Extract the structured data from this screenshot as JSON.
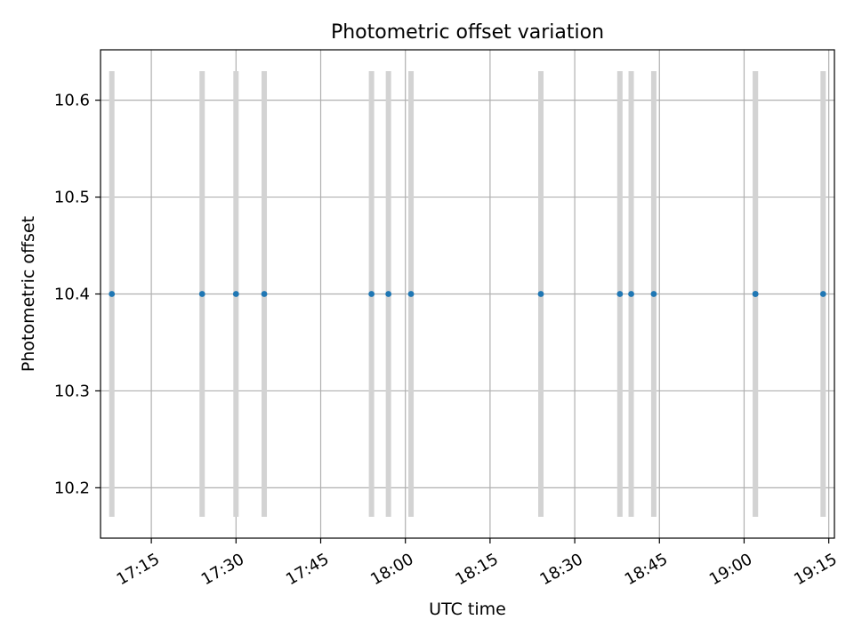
{
  "chart_data": {
    "type": "scatter",
    "title": "Photometric offset variation",
    "xlabel": "UTC time",
    "ylabel": "Photometric offset",
    "x_is_time": true,
    "xlim": [
      "17:06",
      "19:16"
    ],
    "ylim": [
      10.148,
      10.652
    ],
    "x_ticks": [
      "17:15",
      "17:30",
      "17:45",
      "18:00",
      "18:15",
      "18:30",
      "18:45",
      "19:00",
      "19:15"
    ],
    "y_ticks": [
      "10.2",
      "10.3",
      "10.4",
      "10.5",
      "10.6"
    ],
    "grid": true,
    "points": [
      {
        "x": "17:08",
        "y": 10.4,
        "err": 0.23
      },
      {
        "x": "17:24",
        "y": 10.4,
        "err": 0.23
      },
      {
        "x": "17:30",
        "y": 10.4,
        "err": 0.23
      },
      {
        "x": "17:35",
        "y": 10.4,
        "err": 0.23
      },
      {
        "x": "17:54",
        "y": 10.4,
        "err": 0.23
      },
      {
        "x": "17:57",
        "y": 10.4,
        "err": 0.23
      },
      {
        "x": "18:01",
        "y": 10.4,
        "err": 0.23
      },
      {
        "x": "18:24",
        "y": 10.4,
        "err": 0.23
      },
      {
        "x": "18:38",
        "y": 10.4,
        "err": 0.23
      },
      {
        "x": "18:40",
        "y": 10.4,
        "err": 0.23
      },
      {
        "x": "18:44",
        "y": 10.4,
        "err": 0.23
      },
      {
        "x": "19:02",
        "y": 10.4,
        "err": 0.23
      },
      {
        "x": "19:02",
        "y": 10.4,
        "err": 0.23
      },
      {
        "x": "19:14",
        "y": 10.4,
        "err": 0.23
      }
    ],
    "colors": {
      "marker": "#1f77b4",
      "errorbar": "#d3d3d3",
      "grid": "#b0b0b0",
      "axes": "#000000"
    }
  }
}
